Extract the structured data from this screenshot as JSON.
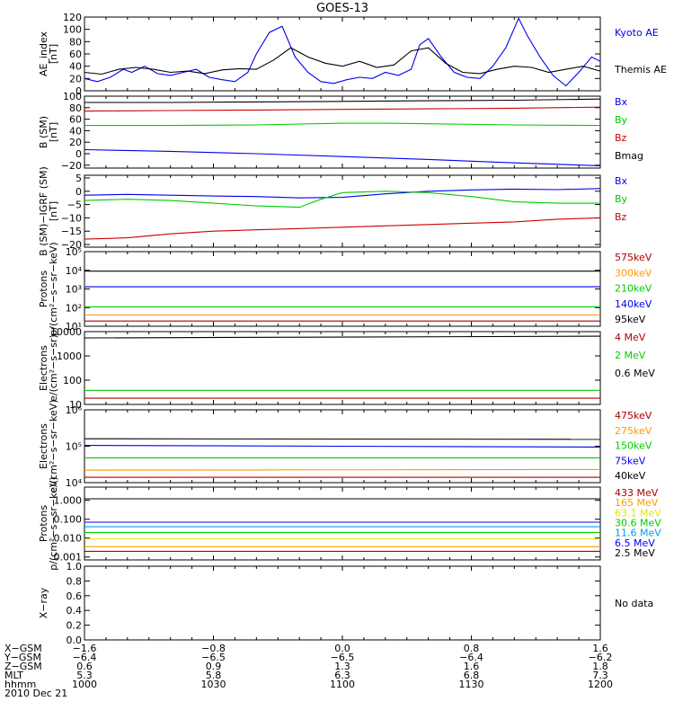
{
  "title": "GOES-13",
  "colors": {
    "black": "#000000",
    "blue": "#0000ee",
    "green": "#00cc00",
    "red": "#cc0000",
    "orange": "#ff9900",
    "yellow": "#e6e600",
    "cyan": "#00a0e6",
    "purple": "#990099",
    "darkred": "#aa0000"
  },
  "chart_data": [
    {
      "type": "line",
      "id": "ae",
      "ylabel": [
        "AE_index",
        "[nT]"
      ],
      "yscale": "linear",
      "ylim": [
        0,
        120
      ],
      "yticks": [
        0,
        20,
        40,
        60,
        80,
        100,
        120
      ],
      "ytick_labels": [
        "0",
        "20",
        "40",
        "60",
        "80",
        "100",
        "120"
      ],
      "series": [
        {
          "name": "Kyoto AE",
          "color": "blue",
          "x": [
            0,
            3,
            6,
            9,
            11,
            14,
            17,
            20,
            23,
            26,
            29,
            32,
            35,
            38,
            40,
            43,
            46,
            49,
            52,
            55,
            58,
            61,
            64,
            67,
            70,
            73,
            76,
            78,
            80,
            83,
            86,
            89,
            92,
            95,
            98,
            101,
            103,
            106,
            109,
            112,
            115,
            118,
            120
          ],
          "y": [
            20,
            15,
            22,
            35,
            30,
            40,
            28,
            25,
            30,
            35,
            22,
            18,
            15,
            30,
            60,
            95,
            105,
            55,
            30,
            15,
            12,
            18,
            22,
            20,
            30,
            25,
            35,
            75,
            85,
            55,
            30,
            22,
            20,
            40,
            70,
            118,
            90,
            55,
            25,
            8,
            30,
            55,
            48
          ]
        },
        {
          "name": "Themis AE",
          "color": "black",
          "x": [
            0,
            4,
            8,
            12,
            16,
            20,
            24,
            28,
            32,
            36,
            40,
            44,
            48,
            52,
            56,
            60,
            64,
            68,
            72,
            76,
            80,
            84,
            88,
            92,
            96,
            100,
            104,
            108,
            112,
            116,
            120
          ],
          "y": [
            30,
            27,
            35,
            38,
            35,
            30,
            32,
            28,
            34,
            36,
            35,
            50,
            70,
            55,
            45,
            40,
            48,
            38,
            42,
            65,
            70,
            45,
            30,
            28,
            35,
            40,
            38,
            30,
            35,
            40,
            32
          ]
        }
      ]
    },
    {
      "type": "line",
      "id": "bsm",
      "ylabel": [
        "B (SM)",
        "[nT]"
      ],
      "yscale": "linear",
      "ylim": [
        -25,
        100
      ],
      "yticks": [
        -20,
        0,
        20,
        40,
        60,
        80,
        100
      ],
      "ytick_labels": [
        "−20",
        "0",
        "20",
        "40",
        "60",
        "80",
        "100"
      ],
      "series": [
        {
          "name": "Bx",
          "color": "blue",
          "x": [
            0,
            20,
            40,
            60,
            80,
            100,
            120
          ],
          "y": [
            7,
            4,
            0,
            -5,
            -10,
            -16,
            -21
          ]
        },
        {
          "name": "By",
          "color": "green",
          "x": [
            0,
            20,
            40,
            60,
            70,
            80,
            100,
            120
          ],
          "y": [
            49,
            49,
            50,
            53,
            53,
            52,
            50,
            49
          ]
        },
        {
          "name": "Bz",
          "color": "red",
          "x": [
            0,
            20,
            40,
            60,
            80,
            100,
            120
          ],
          "y": [
            74,
            75,
            76,
            77,
            78,
            79,
            81
          ]
        },
        {
          "name": "Bmag",
          "color": "black",
          "x": [
            0,
            20,
            40,
            60,
            80,
            100,
            120
          ],
          "y": [
            89,
            89,
            90,
            91,
            92,
            93,
            95
          ]
        }
      ]
    },
    {
      "type": "line",
      "id": "bigrf",
      "ylabel": [
        "B (SM)−IGRF (SM)",
        "[nT]"
      ],
      "yscale": "linear",
      "ylim": [
        -21,
        6
      ],
      "yticks": [
        -20,
        -15,
        -10,
        -5,
        0,
        5
      ],
      "ytick_labels": [
        "−20",
        "−15",
        "−10",
        "−5",
        "0",
        "5"
      ],
      "series": [
        {
          "name": "Bx",
          "color": "blue",
          "x": [
            0,
            10,
            20,
            30,
            40,
            50,
            60,
            70,
            80,
            90,
            100,
            110,
            120
          ],
          "y": [
            -1.5,
            -1.2,
            -1.5,
            -1.8,
            -2,
            -2.5,
            -2.3,
            -1,
            0,
            0.5,
            0.8,
            0.6,
            1
          ]
        },
        {
          "name": "By",
          "color": "green",
          "x": [
            0,
            10,
            20,
            30,
            40,
            50,
            55,
            60,
            70,
            80,
            90,
            100,
            110,
            120
          ],
          "y": [
            -3.5,
            -3,
            -3.5,
            -4.5,
            -5.5,
            -6,
            -3,
            -0.5,
            0,
            -0.5,
            -2,
            -4,
            -4.5,
            -4.5
          ]
        },
        {
          "name": "Bz",
          "color": "red",
          "x": [
            0,
            10,
            20,
            30,
            40,
            50,
            60,
            70,
            80,
            90,
            100,
            110,
            120
          ],
          "y": [
            -18,
            -17.5,
            -16,
            -15,
            -14.5,
            -14,
            -13.5,
            -13,
            -12.5,
            -12,
            -11.5,
            -10.5,
            -10
          ]
        }
      ]
    },
    {
      "type": "line",
      "id": "protons_lo",
      "ylabel": [
        "Protons",
        "p/(cm²−s−sr−keV)"
      ],
      "yscale": "log",
      "ylim": [
        10,
        100000
      ],
      "yticks": [
        10,
        100,
        1000,
        10000,
        100000
      ],
      "ytick_labels": [
        "10¹",
        "10²",
        "10³",
        "10⁴",
        "10⁵"
      ],
      "series": [
        {
          "name": "575keV",
          "color": "darkred",
          "x": [
            0,
            120
          ],
          "y": [
            19,
            19
          ]
        },
        {
          "name": "300keV",
          "color": "orange",
          "x": [
            0,
            120
          ],
          "y": [
            40,
            40
          ]
        },
        {
          "name": "210keV",
          "color": "green",
          "x": [
            0,
            120
          ],
          "y": [
            110,
            110
          ]
        },
        {
          "name": "140keV",
          "color": "blue",
          "x": [
            0,
            120
          ],
          "y": [
            1300,
            1300
          ]
        },
        {
          "name": "95keV",
          "color": "black",
          "x": [
            0,
            120
          ],
          "y": [
            9000,
            9000
          ]
        }
      ]
    },
    {
      "type": "line",
      "id": "electrons_mev",
      "ylabel": [
        "Electrons",
        "e/(cm²−s−sr)"
      ],
      "yscale": "log",
      "ylim": [
        10,
        10000
      ],
      "yticks": [
        10,
        100,
        1000,
        10000
      ],
      "ytick_labels": [
        "10",
        "100",
        "1000",
        "10000"
      ],
      "series": [
        {
          "name": "4 MeV",
          "color": "darkred",
          "x": [
            0,
            120
          ],
          "y": [
            18,
            18
          ]
        },
        {
          "name": "2 MeV",
          "color": "green",
          "x": [
            0,
            120
          ],
          "y": [
            38,
            38
          ]
        },
        {
          "name": "0.6 MeV",
          "color": "black",
          "x": [
            0,
            120
          ],
          "y": [
            5500,
            6500
          ]
        }
      ]
    },
    {
      "type": "line",
      "id": "electrons_kev",
      "ylabel": [
        "Electrons",
        "e/(cm²−s−sr−keV)"
      ],
      "yscale": "log",
      "ylim": [
        10000,
        1000000
      ],
      "yticks": [
        10000,
        100000,
        1000000
      ],
      "ytick_labels": [
        "10⁴",
        "10⁵",
        "10⁶"
      ],
      "series": [
        {
          "name": "475keV",
          "color": "darkred",
          "x": [
            0,
            120
          ],
          "y": [
            14000,
            14000
          ]
        },
        {
          "name": "275keV",
          "color": "orange",
          "x": [
            0,
            120
          ],
          "y": [
            22000,
            23000
          ]
        },
        {
          "name": "150keV",
          "color": "green",
          "x": [
            0,
            120
          ],
          "y": [
            48000,
            48000
          ]
        },
        {
          "name": "75keV",
          "color": "blue",
          "x": [
            0,
            120
          ],
          "y": [
            105000,
            95000
          ]
        },
        {
          "name": "40keV",
          "color": "black",
          "x": [
            0,
            120
          ],
          "y": [
            160000,
            155000
          ]
        }
      ]
    },
    {
      "type": "line",
      "id": "protons_hi",
      "ylabel": [
        "Protons",
        "p/(cm²−s−sr−keV)"
      ],
      "yscale": "log",
      "ylim": [
        0.0007,
        5
      ],
      "yticks": [
        0.001,
        0.01,
        0.1,
        1
      ],
      "ytick_labels": [
        "0.001",
        "0.010",
        "0.100",
        "1.000"
      ],
      "series": [
        {
          "name": "433 MeV",
          "color": "darkred",
          "x": [
            0,
            120
          ],
          "y": [
            0.002,
            0.002
          ]
        },
        {
          "name": "165 MeV",
          "color": "orange",
          "x": [
            0,
            120
          ],
          "y": [
            0.0035,
            0.0035
          ]
        },
        {
          "name": "63.1 MeV",
          "color": "yellow",
          "x": [
            0,
            120
          ],
          "y": [
            0.009,
            0.009
          ]
        },
        {
          "name": "30.6 MeV",
          "color": "green",
          "x": [
            0,
            120
          ],
          "y": [
            0.02,
            0.02
          ]
        },
        {
          "name": "11.6 MeV",
          "color": "cyan",
          "x": [
            0,
            120
          ],
          "y": [
            0.04,
            0.04
          ]
        },
        {
          "name": "6.5 MeV",
          "color": "blue",
          "x": [
            0,
            120
          ],
          "y": [
            0.07,
            0.07
          ]
        },
        {
          "name": "2.5 MeV",
          "color": "black",
          "x": [
            0,
            120
          ],
          "y": [
            1.2,
            1.2
          ]
        }
      ]
    },
    {
      "type": "line",
      "id": "xray",
      "ylabel": [
        "X−ray"
      ],
      "yscale": "linear",
      "ylim": [
        0,
        1
      ],
      "yticks": [
        0,
        0.2,
        0.4,
        0.6,
        0.8,
        1.0
      ],
      "ytick_labels": [
        "0.0",
        "0.2",
        "0.4",
        "0.6",
        "0.8",
        "1.0"
      ],
      "legend_text": "No data",
      "series": []
    }
  ],
  "orbit": {
    "row_labels": [
      "X−GSM",
      "Y−GSM",
      "Z−GSM",
      "MLT",
      "hhmm",
      "2010 Dec 21"
    ],
    "columns": [
      [
        "−1.6",
        "−6.4",
        "0.6",
        "5.3",
        "1000"
      ],
      [
        "−0.8",
        "−6.5",
        "0.9",
        "5.8",
        "1030"
      ],
      [
        "0.0",
        "−6.5",
        "1.3",
        "6.3",
        "1100"
      ],
      [
        "0.8",
        "−6.4",
        "1.6",
        "6.8",
        "1130"
      ],
      [
        "1.6",
        "−6.2",
        "1.8",
        "7.3",
        "1200"
      ]
    ]
  }
}
